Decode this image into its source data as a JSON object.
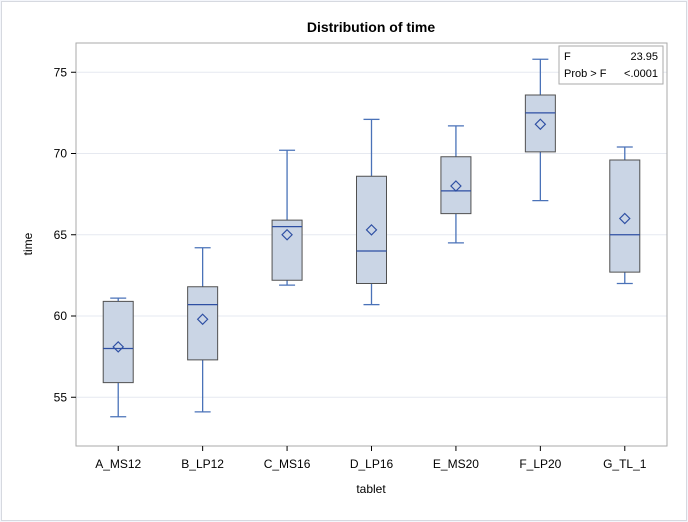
{
  "chart_data": {
    "type": "box",
    "title": "Distribution of time",
    "xlabel": "tablet",
    "ylabel": "time",
    "ylim": [
      52.0,
      76.8
    ],
    "yticks": [
      55,
      60,
      65,
      70,
      75
    ],
    "grid": true,
    "categories": [
      "A_MS12",
      "B_LP12",
      "C_MS16",
      "D_LP16",
      "E_MS20",
      "F_LP20",
      "G_TL_1"
    ],
    "boxes": [
      {
        "category": "A_MS12",
        "min": 53.8,
        "q1": 55.9,
        "median": 58.0,
        "q3": 60.9,
        "max": 61.1,
        "mean": 58.1
      },
      {
        "category": "B_LP12",
        "min": 54.1,
        "q1": 57.3,
        "median": 60.7,
        "q3": 61.8,
        "max": 64.2,
        "mean": 59.8
      },
      {
        "category": "C_MS16",
        "min": 61.9,
        "q1": 62.2,
        "median": 65.5,
        "q3": 65.9,
        "max": 70.2,
        "mean": 65.0
      },
      {
        "category": "D_LP16",
        "min": 60.7,
        "q1": 62.0,
        "median": 64.0,
        "q3": 68.6,
        "max": 72.1,
        "mean": 65.3
      },
      {
        "category": "E_MS20",
        "min": 64.5,
        "q1": 66.3,
        "median": 67.7,
        "q3": 69.8,
        "max": 71.7,
        "mean": 68.0
      },
      {
        "category": "F_LP20",
        "min": 67.1,
        "q1": 70.1,
        "median": 72.5,
        "q3": 73.6,
        "max": 75.8,
        "mean": 71.8
      },
      {
        "category": "G_TL_1",
        "min": 62.0,
        "q1": 62.7,
        "median": 65.0,
        "q3": 69.6,
        "max": 70.4,
        "mean": 66.0
      }
    ],
    "stats_box": {
      "position": "top-right",
      "rows": [
        {
          "label": "F",
          "value": "23.95"
        },
        {
          "label": "Prob > F",
          "value": "<.0001"
        }
      ]
    }
  },
  "colors": {
    "box_fill": "#cad5e5",
    "box_stroke": "#505050",
    "whisker": "#4a72b8",
    "median": "#2e4fa3",
    "mean_marker": "#2e4fa3",
    "grid": "#e6e9f0",
    "wall": "#aaaaaa",
    "background": "#ffffff",
    "page_background": "#f4f6fb"
  }
}
